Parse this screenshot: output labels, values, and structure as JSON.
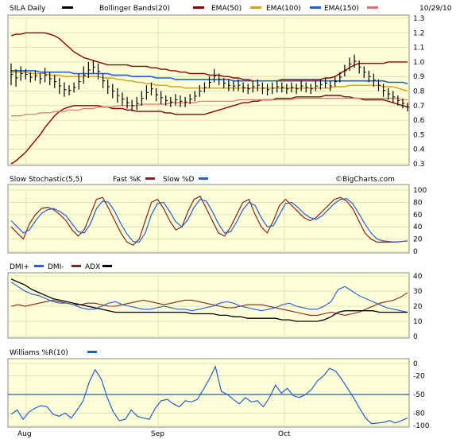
{
  "chart_data": [
    {
      "panel": "price",
      "type": "line",
      "title": "SILA Daily",
      "date": "10/29/10",
      "legend": [
        {
          "name": "SILA Daily",
          "color": "#000000"
        },
        {
          "name": "Bollinger Bands(20)",
          "color": "#8b0000"
        },
        {
          "name": "EMA(50)",
          "color": "#d4a017"
        },
        {
          "name": "EMA(100)",
          "color": "#1f5fd6"
        },
        {
          "name": "EMA(150)",
          "color": "#e07070"
        }
      ],
      "yticks": [
        "1.3",
        "1.2",
        "1.1",
        "1.0",
        "0.9",
        "0.8",
        "0.7",
        "0.6",
        "0.5",
        "0.4",
        "0.3"
      ],
      "ylim": [
        0.3,
        1.3
      ],
      "ohlc": [
        [
          0.99,
          0.84
        ],
        [
          0.95,
          0.83
        ],
        [
          0.97,
          0.87
        ],
        [
          0.95,
          0.88
        ],
        [
          0.93,
          0.86
        ],
        [
          0.94,
          0.87
        ],
        [
          0.92,
          0.85
        ],
        [
          0.96,
          0.86
        ],
        [
          0.93,
          0.84
        ],
        [
          0.91,
          0.82
        ],
        [
          0.89,
          0.78
        ],
        [
          0.86,
          0.76
        ],
        [
          0.84,
          0.77
        ],
        [
          0.86,
          0.79
        ],
        [
          0.92,
          0.81
        ],
        [
          0.97,
          0.85
        ],
        [
          1.0,
          0.89
        ],
        [
          1.01,
          0.92
        ],
        [
          0.99,
          0.88
        ],
        [
          0.92,
          0.82
        ],
        [
          0.88,
          0.78
        ],
        [
          0.85,
          0.75
        ],
        [
          0.82,
          0.72
        ],
        [
          0.79,
          0.7
        ],
        [
          0.76,
          0.68
        ],
        [
          0.74,
          0.66
        ],
        [
          0.76,
          0.67
        ],
        [
          0.8,
          0.7
        ],
        [
          0.84,
          0.74
        ],
        [
          0.86,
          0.77
        ],
        [
          0.82,
          0.73
        ],
        [
          0.8,
          0.71
        ],
        [
          0.77,
          0.7
        ],
        [
          0.76,
          0.69
        ],
        [
          0.78,
          0.7
        ],
        [
          0.77,
          0.69
        ],
        [
          0.76,
          0.69
        ],
        [
          0.78,
          0.71
        ],
        [
          0.8,
          0.73
        ],
        [
          0.84,
          0.76
        ],
        [
          0.86,
          0.79
        ],
        [
          0.9,
          0.82
        ],
        [
          0.95,
          0.86
        ],
        [
          0.92,
          0.84
        ],
        [
          0.89,
          0.82
        ],
        [
          0.88,
          0.8
        ],
        [
          0.87,
          0.8
        ],
        [
          0.88,
          0.8
        ],
        [
          0.86,
          0.79
        ],
        [
          0.85,
          0.78
        ],
        [
          0.87,
          0.79
        ],
        [
          0.88,
          0.8
        ],
        [
          0.86,
          0.78
        ],
        [
          0.85,
          0.77
        ],
        [
          0.86,
          0.78
        ],
        [
          0.87,
          0.79
        ],
        [
          0.86,
          0.79
        ],
        [
          0.85,
          0.78
        ],
        [
          0.86,
          0.79
        ],
        [
          0.85,
          0.78
        ],
        [
          0.87,
          0.8
        ],
        [
          0.86,
          0.79
        ],
        [
          0.85,
          0.78
        ],
        [
          0.87,
          0.8
        ],
        [
          0.88,
          0.81
        ],
        [
          0.89,
          0.82
        ],
        [
          0.87,
          0.8
        ],
        [
          0.9,
          0.83
        ],
        [
          0.93,
          0.86
        ],
        [
          0.98,
          0.9
        ],
        [
          1.03,
          0.94
        ],
        [
          1.05,
          0.96
        ],
        [
          1.01,
          0.92
        ],
        [
          0.97,
          0.89
        ],
        [
          0.94,
          0.86
        ],
        [
          0.92,
          0.83
        ],
        [
          0.88,
          0.8
        ],
        [
          0.85,
          0.76
        ],
        [
          0.82,
          0.74
        ],
        [
          0.8,
          0.72
        ],
        [
          0.77,
          0.7
        ],
        [
          0.75,
          0.68
        ],
        [
          0.72,
          0.66
        ]
      ],
      "bollinger_upper": [
        1.18,
        1.19,
        1.19,
        1.2,
        1.2,
        1.2,
        1.2,
        1.2,
        1.19,
        1.18,
        1.16,
        1.13,
        1.1,
        1.07,
        1.05,
        1.03,
        1.02,
        1.01,
        1.0,
        0.99,
        0.98,
        0.98,
        0.98,
        0.98,
        0.98,
        0.97,
        0.97,
        0.97,
        0.97,
        0.96,
        0.96,
        0.95,
        0.95,
        0.94,
        0.94,
        0.93,
        0.93,
        0.92,
        0.92,
        0.92,
        0.92,
        0.91,
        0.91,
        0.91,
        0.9,
        0.9,
        0.89,
        0.89,
        0.88,
        0.88,
        0.87,
        0.87,
        0.87,
        0.87,
        0.87,
        0.87,
        0.88,
        0.88,
        0.88,
        0.88,
        0.88,
        0.88,
        0.88,
        0.88,
        0.88,
        0.89,
        0.89,
        0.9,
        0.92,
        0.94,
        0.96,
        0.98,
        0.99,
        0.99,
        0.99,
        0.99,
        0.99,
        0.99,
        1.0,
        1.0,
        1.0,
        1.0,
        1.0
      ],
      "bollinger_lower": [
        0.3,
        0.32,
        0.35,
        0.38,
        0.42,
        0.46,
        0.5,
        0.55,
        0.59,
        0.63,
        0.66,
        0.68,
        0.69,
        0.7,
        0.7,
        0.7,
        0.7,
        0.7,
        0.7,
        0.69,
        0.69,
        0.68,
        0.68,
        0.68,
        0.67,
        0.67,
        0.66,
        0.66,
        0.66,
        0.66,
        0.66,
        0.66,
        0.65,
        0.65,
        0.64,
        0.64,
        0.64,
        0.64,
        0.64,
        0.64,
        0.64,
        0.65,
        0.66,
        0.67,
        0.68,
        0.69,
        0.7,
        0.71,
        0.72,
        0.72,
        0.73,
        0.73,
        0.74,
        0.74,
        0.74,
        0.75,
        0.75,
        0.75,
        0.75,
        0.76,
        0.76,
        0.76,
        0.76,
        0.76,
        0.76,
        0.77,
        0.77,
        0.77,
        0.77,
        0.76,
        0.76,
        0.75,
        0.75,
        0.74,
        0.74,
        0.74,
        0.74,
        0.74,
        0.73,
        0.72,
        0.71,
        0.7,
        0.69
      ],
      "ema50": [
        0.93,
        0.93,
        0.93,
        0.93,
        0.92,
        0.92,
        0.92,
        0.92,
        0.91,
        0.91,
        0.91,
        0.9,
        0.9,
        0.9,
        0.9,
        0.9,
        0.9,
        0.9,
        0.9,
        0.89,
        0.89,
        0.89,
        0.88,
        0.88,
        0.87,
        0.87,
        0.86,
        0.86,
        0.85,
        0.85,
        0.84,
        0.84,
        0.84,
        0.83,
        0.83,
        0.83,
        0.82,
        0.82,
        0.82,
        0.82,
        0.82,
        0.82,
        0.82,
        0.82,
        0.82,
        0.82,
        0.82,
        0.82,
        0.82,
        0.82,
        0.82,
        0.82,
        0.82,
        0.82,
        0.82,
        0.82,
        0.82,
        0.82,
        0.82,
        0.82,
        0.82,
        0.82,
        0.82,
        0.82,
        0.82,
        0.82,
        0.82,
        0.83,
        0.83,
        0.83,
        0.84,
        0.84,
        0.84,
        0.84,
        0.84,
        0.84,
        0.84,
        0.83,
        0.83,
        0.83,
        0.82,
        0.81,
        0.8
      ],
      "ema100": [
        0.94,
        0.94,
        0.94,
        0.94,
        0.94,
        0.94,
        0.93,
        0.93,
        0.93,
        0.93,
        0.93,
        0.93,
        0.93,
        0.92,
        0.92,
        0.92,
        0.92,
        0.92,
        0.92,
        0.92,
        0.92,
        0.91,
        0.91,
        0.91,
        0.91,
        0.9,
        0.9,
        0.9,
        0.9,
        0.9,
        0.89,
        0.89,
        0.89,
        0.89,
        0.88,
        0.88,
        0.88,
        0.88,
        0.88,
        0.88,
        0.88,
        0.88,
        0.88,
        0.88,
        0.88,
        0.88,
        0.87,
        0.87,
        0.87,
        0.87,
        0.87,
        0.87,
        0.87,
        0.87,
        0.87,
        0.87,
        0.87,
        0.87,
        0.87,
        0.87,
        0.87,
        0.87,
        0.87,
        0.87,
        0.87,
        0.87,
        0.87,
        0.87,
        0.87,
        0.87,
        0.87,
        0.87,
        0.87,
        0.87,
        0.87,
        0.87,
        0.87,
        0.87,
        0.86,
        0.86,
        0.86,
        0.86,
        0.85
      ],
      "ema150": [
        0.63,
        0.63,
        0.63,
        0.64,
        0.64,
        0.64,
        0.65,
        0.65,
        0.65,
        0.66,
        0.66,
        0.66,
        0.67,
        0.67,
        0.67,
        0.68,
        0.68,
        0.68,
        0.69,
        0.69,
        0.69,
        0.69,
        0.7,
        0.7,
        0.7,
        0.7,
        0.7,
        0.71,
        0.71,
        0.71,
        0.71,
        0.71,
        0.71,
        0.72,
        0.72,
        0.72,
        0.72,
        0.72,
        0.72,
        0.73,
        0.73,
        0.73,
        0.73,
        0.73,
        0.73,
        0.73,
        0.73,
        0.74,
        0.74,
        0.74,
        0.74,
        0.74,
        0.74,
        0.74,
        0.74,
        0.74,
        0.74,
        0.74,
        0.74,
        0.75,
        0.75,
        0.75,
        0.75,
        0.75,
        0.75,
        0.75,
        0.75,
        0.75,
        0.75,
        0.75,
        0.75,
        0.75,
        0.75,
        0.75,
        0.75,
        0.75,
        0.75,
        0.75,
        0.75,
        0.75,
        0.75,
        0.74,
        0.74
      ]
    },
    {
      "panel": "stochastic",
      "type": "line",
      "legend": [
        {
          "name": "Slow Stochastic(5,5)",
          "color": ""
        },
        {
          "name": "Fast %K",
          "color": "#8b2020"
        },
        {
          "name": "Slow %D",
          "color": "#1f5fd6"
        }
      ],
      "watermark": "©BigCharts.com",
      "yticks": [
        "100",
        "80",
        "60",
        "40",
        "20",
        "0"
      ],
      "ylim": [
        0,
        100
      ],
      "fast_k": [
        40,
        30,
        20,
        45,
        60,
        70,
        72,
        68,
        60,
        50,
        35,
        25,
        35,
        60,
        85,
        88,
        70,
        50,
        30,
        15,
        10,
        20,
        50,
        80,
        85,
        70,
        50,
        35,
        40,
        65,
        85,
        90,
        70,
        50,
        30,
        25,
        40,
        60,
        80,
        85,
        60,
        40,
        30,
        50,
        75,
        85,
        75,
        65,
        55,
        50,
        55,
        65,
        75,
        85,
        88,
        82,
        70,
        50,
        30,
        20,
        15,
        15,
        15,
        15,
        16,
        17
      ],
      "slow_d": [
        50,
        40,
        30,
        35,
        50,
        62,
        68,
        70,
        65,
        58,
        45,
        32,
        30,
        45,
        70,
        82,
        80,
        65,
        45,
        28,
        16,
        15,
        30,
        60,
        78,
        80,
        65,
        48,
        40,
        52,
        72,
        85,
        82,
        65,
        45,
        30,
        32,
        48,
        68,
        80,
        75,
        55,
        40,
        42,
        60,
        78,
        80,
        72,
        62,
        55,
        52,
        58,
        68,
        78,
        85,
        86,
        78,
        62,
        45,
        30,
        20,
        17,
        16,
        15,
        16,
        17
      ]
    },
    {
      "panel": "dmi",
      "type": "line",
      "legend": [
        {
          "name": "DMI+",
          "color": "#1f5fd6"
        },
        {
          "name": "DMI-",
          "color": "#8b2020"
        },
        {
          "name": "ADX",
          "color": "#000000"
        }
      ],
      "yticks": [
        "40",
        "30",
        "20",
        "10",
        "0"
      ],
      "ylim": [
        0,
        40
      ],
      "dmi_plus": [
        36,
        33,
        30,
        28,
        27,
        25,
        23,
        22,
        22,
        21,
        19,
        18,
        18,
        20,
        22,
        23,
        21,
        20,
        19,
        18,
        18,
        19,
        20,
        19,
        18,
        18,
        17,
        18,
        19,
        20,
        22,
        23,
        22,
        20,
        19,
        18,
        17,
        18,
        19,
        21,
        22,
        20,
        19,
        18,
        18,
        20,
        23,
        31,
        33,
        30,
        27,
        25,
        23,
        21,
        19,
        18,
        17,
        16
      ],
      "dmi_minus": [
        20,
        21,
        20,
        21,
        22,
        23,
        24,
        23,
        22,
        21,
        21,
        22,
        22,
        21,
        20,
        20,
        21,
        22,
        23,
        24,
        23,
        22,
        21,
        22,
        23,
        24,
        24,
        23,
        22,
        21,
        20,
        19,
        19,
        20,
        21,
        21,
        21,
        20,
        19,
        18,
        17,
        16,
        15,
        14,
        14,
        15,
        16,
        15,
        14,
        15,
        16,
        18,
        20,
        22,
        23,
        24,
        26,
        29
      ],
      "adx": [
        38,
        36,
        34,
        31,
        29,
        27,
        25,
        24,
        23,
        22,
        21,
        20,
        19,
        18,
        17,
        16,
        16,
        16,
        16,
        16,
        16,
        16,
        16,
        16,
        16,
        16,
        15,
        15,
        15,
        15,
        14,
        14,
        13,
        13,
        12,
        12,
        12,
        12,
        12,
        11,
        11,
        10,
        10,
        10,
        10,
        11,
        13,
        16,
        17,
        17,
        17,
        17,
        17,
        16,
        16,
        16,
        16,
        16
      ]
    },
    {
      "panel": "williams",
      "type": "line",
      "legend": [
        {
          "name": "Williams %R(10)",
          "color": "#1f5fd6"
        }
      ],
      "yticks": [
        "0",
        "-20",
        "-50",
        "-80",
        "-100"
      ],
      "ylim": [
        -100,
        0
      ],
      "reference_line": -50,
      "values": [
        -82,
        -75,
        -90,
        -78,
        -72,
        -68,
        -70,
        -82,
        -85,
        -80,
        -88,
        -75,
        -60,
        -30,
        -10,
        -25,
        -55,
        -78,
        -92,
        -90,
        -75,
        -85,
        -88,
        -90,
        -72,
        -60,
        -58,
        -65,
        -70,
        -60,
        -62,
        -58,
        -42,
        -25,
        -5,
        -45,
        -50,
        -58,
        -65,
        -55,
        -62,
        -60,
        -70,
        -55,
        -35,
        -48,
        -40,
        -52,
        -55,
        -50,
        -42,
        -28,
        -20,
        -8,
        -12,
        -25,
        -40,
        -55,
        -72,
        -88,
        -97,
        -96,
        -95,
        -92,
        -96,
        -92,
        -88
      ],
      "xticks": [
        "Aug",
        "Sep",
        "Oct"
      ]
    }
  ]
}
